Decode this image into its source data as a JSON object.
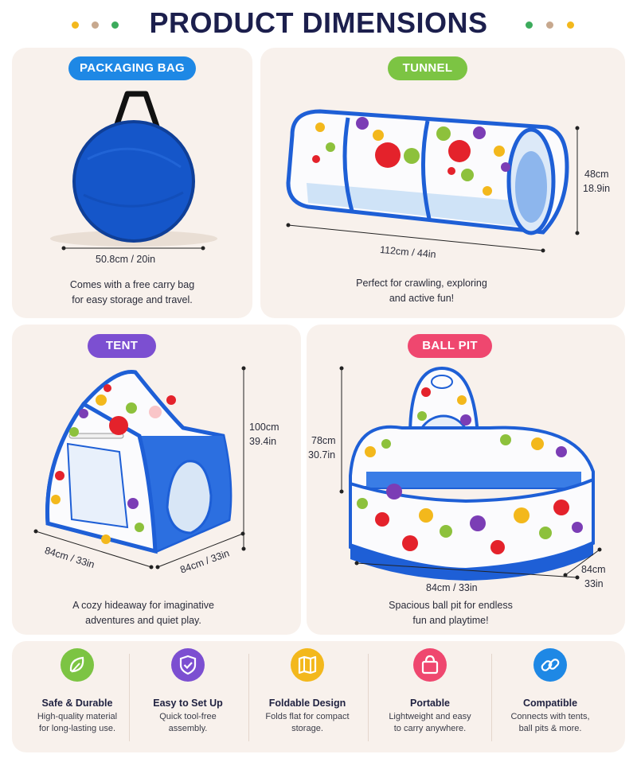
{
  "header": {
    "title": "PRODUCT DIMENSIONS",
    "dot_colors_left": [
      "#f3b81c",
      "#c7a88e",
      "#3cab5c"
    ],
    "dot_colors_right": [
      "#3cab5c",
      "#c7a88e",
      "#f3b81c"
    ]
  },
  "packaging_bag": {
    "label": "PACKAGING BAG",
    "label_color": "#1e88e5",
    "dimension": "50.8cm / 20in",
    "caption_line1": "Comes with a free carry bag",
    "caption_line2": "for easy storage and travel."
  },
  "tunnel": {
    "label": "TUNNEL",
    "label_color": "#7cc443",
    "length": "112cm / 44in",
    "height_cm": "48cm",
    "height_in": "18.9in",
    "caption_line1": "Perfect for crawling, exploring",
    "caption_line2": "and active fun!"
  },
  "tent": {
    "label": "TENT",
    "label_color": "#7c4fd1",
    "height_cm": "100cm",
    "height_in": "39.4in",
    "depth": "84cm / 33in",
    "width": "84cm / 33in",
    "caption_line1": "A cozy hideaway for imaginative",
    "caption_line2": "adventures and quiet play."
  },
  "ball_pit": {
    "label": "BALL PIT",
    "label_color": "#ef476f",
    "height_cm": "78cm",
    "height_in": "30.7in",
    "width": "84cm / 33in",
    "depth_cm": "84cm",
    "depth_in": "33in",
    "caption_line1": "Spacious ball pit for endless",
    "caption_line2": "fun and playtime!"
  },
  "features": [
    {
      "icon": "leaf-icon",
      "color": "#7cc443",
      "title": "Safe & Durable",
      "desc_line1": "High-quality material",
      "desc_line2": "for long-lasting use."
    },
    {
      "icon": "shield-check-icon",
      "color": "#7c4fd1",
      "title": "Easy to Set Up",
      "desc_line1": "Quick tool-free",
      "desc_line2": "assembly."
    },
    {
      "icon": "folded-map-icon",
      "color": "#f3b81c",
      "title": "Foldable Design",
      "desc_line1": "Folds flat for compact",
      "desc_line2": "storage."
    },
    {
      "icon": "shopping-bag-icon",
      "color": "#ef476f",
      "title": "Portable",
      "desc_line1": "Lightweight and easy",
      "desc_line2": "to carry anywhere."
    },
    {
      "icon": "link-icon",
      "color": "#1e88e5",
      "title": "Compatible",
      "desc_line1": "Connects with tents,",
      "desc_line2": "ball pits & more."
    }
  ]
}
